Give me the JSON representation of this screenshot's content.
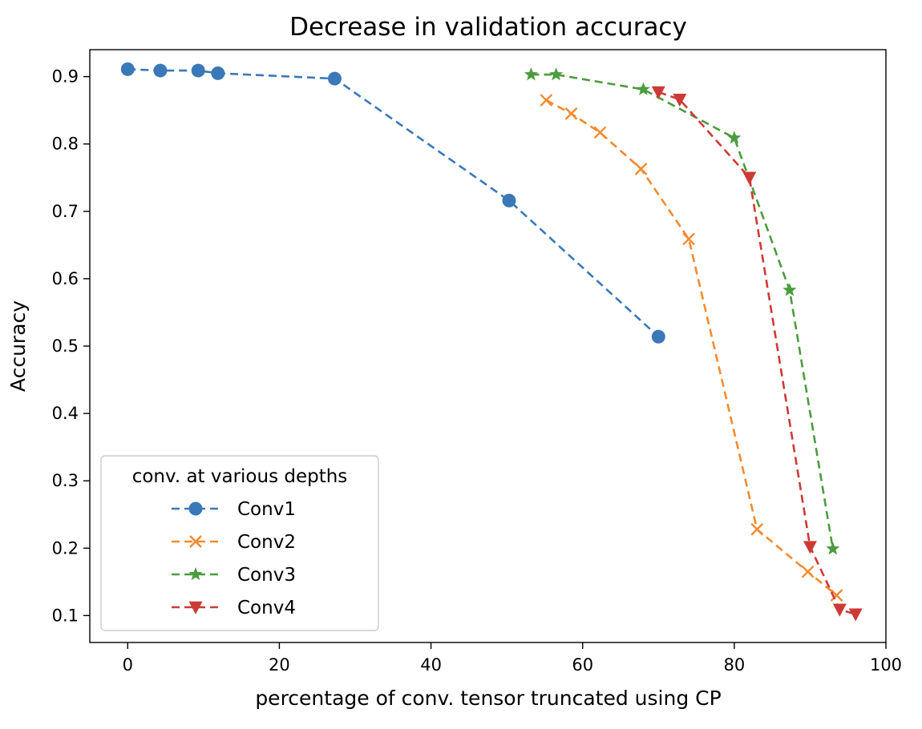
{
  "chart_data": {
    "type": "line",
    "title": "Decrease in validation accuracy",
    "xlabel": "percentage of conv. tensor truncated using CP",
    "ylabel": "Accuracy",
    "xlim": [
      -5,
      100
    ],
    "ylim": [
      0.06,
      0.94
    ],
    "xticks": [
      0,
      20,
      40,
      60,
      80,
      100
    ],
    "yticks": [
      0.1,
      0.2,
      0.3,
      0.4,
      0.5,
      0.6,
      0.7,
      0.8,
      0.9
    ],
    "grid": false,
    "legend": {
      "title": "conv. at various depths",
      "placement": "lower-left"
    },
    "series": [
      {
        "name": "Conv1",
        "color": "#3a78b7",
        "marker": "circle",
        "x": [
          0,
          4.3,
          9.3,
          11.9,
          27.3,
          50.3,
          70.0
        ],
        "y": [
          0.911,
          0.909,
          0.909,
          0.905,
          0.897,
          0.716,
          0.514
        ]
      },
      {
        "name": "Conv2",
        "color": "#f58a2e",
        "marker": "x",
        "x": [
          55.2,
          58.5,
          62.3,
          67.7,
          74.0,
          83.0,
          89.7,
          93.5
        ],
        "y": [
          0.865,
          0.845,
          0.817,
          0.763,
          0.659,
          0.228,
          0.165,
          0.13
        ]
      },
      {
        "name": "Conv3",
        "color": "#4b9c3e",
        "marker": "star",
        "x": [
          53.2,
          56.5,
          68.0,
          80.0,
          87.3,
          93.0
        ],
        "y": [
          0.903,
          0.903,
          0.881,
          0.809,
          0.583,
          0.199
        ]
      },
      {
        "name": "Conv4",
        "color": "#cd3a35",
        "marker": "triangle-down",
        "x": [
          70.0,
          72.8,
          82.0,
          90.0,
          93.9,
          96.0
        ],
        "y": [
          0.877,
          0.866,
          0.75,
          0.202,
          0.109,
          0.102
        ]
      }
    ]
  }
}
